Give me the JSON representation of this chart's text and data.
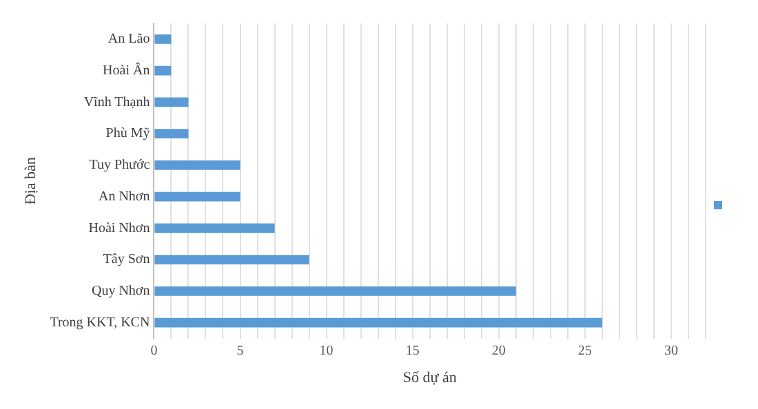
{
  "chart_data": {
    "type": "bar",
    "orientation": "horizontal",
    "xlabel": "Số dự án",
    "ylabel": "Địa bàn",
    "categories": [
      "An Lão",
      "Hoài Ân",
      "Vĩnh Thạnh",
      "Phù Mỹ",
      "Tuy Phước",
      "An Nhơn",
      "Hoài Nhơn",
      "Tây Sơn",
      "Quy Nhơn",
      "Trong KKT, KCN"
    ],
    "series": [
      {
        "color": "#5b9bd5",
        "values": [
          1,
          1,
          2,
          2,
          5,
          5,
          7,
          9,
          21,
          26
        ]
      }
    ],
    "xlim": [
      0,
      32
    ],
    "xticks": [
      0,
      {
        "value": 1,
        "label": null
      },
      {
        "value": 2,
        "label": null
      },
      {
        "value": 3,
        "label": null
      },
      {
        "value": 4,
        "label": null
      },
      5,
      {
        "value": 6,
        "label": null
      },
      {
        "value": 7,
        "label": null
      },
      {
        "value": 8,
        "label": null
      },
      {
        "value": 9,
        "label": null
      },
      10,
      {
        "value": 11,
        "label": null
      },
      {
        "value": 12,
        "label": null
      },
      {
        "value": 13,
        "label": null
      },
      {
        "value": 14,
        "label": null
      },
      15,
      {
        "value": 16,
        "label": null
      },
      {
        "value": 17,
        "label": null
      },
      {
        "value": 18,
        "label": null
      },
      {
        "value": 19,
        "label": null
      },
      20,
      {
        "value": 21,
        "label": null
      },
      {
        "value": 22,
        "label": null
      },
      {
        "value": 23,
        "label": null
      },
      {
        "value": 24,
        "label": null
      },
      25,
      {
        "value": 26,
        "label": null
      },
      {
        "value": 27,
        "label": null
      },
      {
        "value": 28,
        "label": null
      },
      {
        "value": 29,
        "label": null
      },
      30,
      {
        "value": 31,
        "label": null
      },
      {
        "value": 32,
        "label": null
      }
    ],
    "grid": "x"
  }
}
